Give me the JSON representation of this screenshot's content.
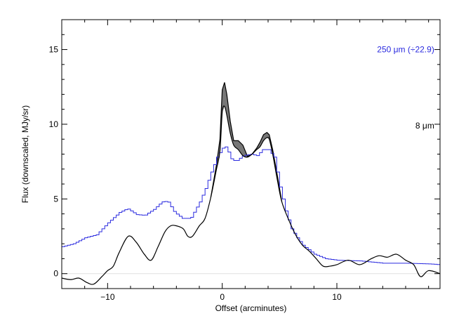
{
  "chart_data": {
    "type": "line",
    "xlabel": "Offset (arcminutes)",
    "ylabel": "Flux (downscaled, MJy/sr)",
    "xlim": [
      -14,
      19
    ],
    "ylim": [
      -1,
      17
    ],
    "x_ticks": [
      -10,
      0,
      10
    ],
    "y_ticks": [
      0,
      5,
      10,
      15
    ],
    "grid": false,
    "legend_placement": "right",
    "colors": {
      "series_250um": "#2a2adf",
      "series_8um": "#000000",
      "band_fill": "#777777",
      "baseline": "#e0e0e0"
    },
    "series": [
      {
        "name": "250 μm (÷22.9)",
        "color": "#2a2adf",
        "style": "step",
        "x": [
          -14,
          -13,
          -12,
          -11,
          -10,
          -9,
          -8.3,
          -7.5,
          -6.8,
          -6,
          -5.3,
          -4.8,
          -4.2,
          -3.5,
          -2.8,
          -2,
          -1.5,
          -1,
          -0.5,
          0,
          0.3,
          0.8,
          1.2,
          1.8,
          2.5,
          3,
          3.5,
          4,
          4.5,
          5,
          5.5,
          6,
          6.5,
          7,
          8,
          9,
          10,
          12,
          14,
          16,
          18,
          19
        ],
        "values": [
          1.8,
          2.0,
          2.4,
          2.6,
          3.4,
          4.1,
          4.35,
          3.95,
          3.9,
          4.3,
          4.8,
          4.85,
          4.1,
          3.7,
          3.7,
          4.8,
          5.7,
          6.8,
          7.8,
          8.4,
          8.5,
          7.6,
          7.55,
          7.9,
          8.0,
          7.9,
          8.3,
          8.3,
          7.8,
          5.8,
          4.2,
          3.0,
          2.4,
          1.9,
          1.3,
          1.0,
          0.9,
          0.85,
          0.7,
          0.7,
          0.65,
          0.6
        ]
      },
      {
        "name": "8 μm",
        "color": "#000000",
        "style": "line",
        "x": [
          -14,
          -13.2,
          -12.5,
          -11.8,
          -11.2,
          -10.5,
          -10,
          -9.5,
          -9,
          -8.2,
          -7.5,
          -6.8,
          -6.2,
          -5.6,
          -5,
          -4.5,
          -4,
          -3.4,
          -3,
          -2.6,
          -2,
          -1.5,
          -1,
          -0.5,
          -0.2,
          0,
          0.2,
          0.4,
          0.7,
          1,
          1.4,
          1.8,
          2.2,
          2.6,
          3,
          3.3,
          3.6,
          3.9,
          4.1,
          4.4,
          4.8,
          5.2,
          5.8,
          6.4,
          7,
          7.6,
          8.2,
          8.8,
          9.4,
          10,
          11,
          12,
          13,
          13.7,
          14.4,
          15.2,
          16,
          16.7,
          17.3,
          18,
          19
        ],
        "values": [
          -0.3,
          -0.4,
          -0.3,
          -0.6,
          -0.7,
          -0.2,
          0.2,
          0.5,
          1.4,
          2.5,
          2.1,
          1.3,
          0.9,
          1.8,
          2.8,
          3.2,
          3.2,
          3.0,
          2.5,
          2.5,
          3.2,
          3.7,
          5.1,
          7.0,
          8.2,
          10.8,
          11.2,
          10.6,
          9.4,
          8.6,
          8.3,
          7.9,
          7.8,
          8.0,
          8.3,
          8.5,
          8.9,
          9.1,
          9.0,
          8.0,
          6.3,
          4.8,
          3.6,
          2.6,
          1.9,
          1.5,
          1.0,
          0.5,
          0.5,
          0.6,
          0.9,
          0.6,
          1.0,
          1.2,
          1.1,
          1.3,
          0.9,
          0.6,
          -0.2,
          0.2,
          0.0
        ]
      },
      {
        "name": "",
        "color": "#000000",
        "style": "upper-envelope",
        "x": [
          -1,
          -0.5,
          -0.2,
          0,
          0.2,
          0.4,
          0.7,
          1,
          1.4,
          1.8,
          2.2,
          2.6,
          3,
          3.3,
          3.6,
          3.9,
          4.1,
          4.4,
          4.8,
          5.2
        ],
        "values": [
          5.1,
          7.3,
          9.0,
          12.3,
          12.8,
          12.0,
          10.2,
          8.9,
          8.9,
          8.6,
          7.85,
          8.0,
          8.4,
          8.8,
          9.3,
          9.45,
          9.3,
          8.3,
          6.6,
          4.8
        ]
      }
    ],
    "annotations": [
      {
        "text": "250 μm (÷22.9)",
        "color": "#2a2adf",
        "x": 18.5,
        "y": 15
      },
      {
        "text": "8 μm",
        "color": "#000000",
        "x": 18.5,
        "y": 9.9
      }
    ]
  }
}
